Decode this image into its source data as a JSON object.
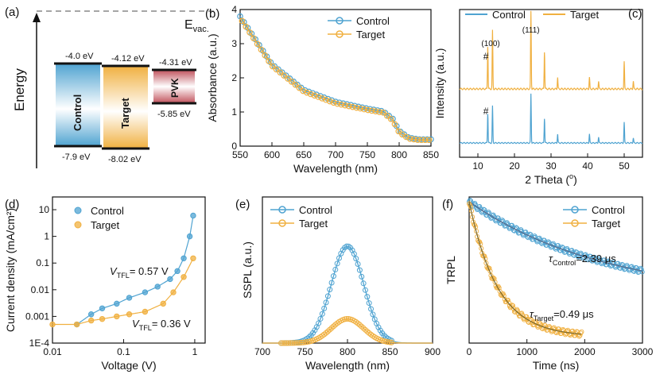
{
  "colors": {
    "control": "#4fa3d1",
    "target": "#f0b040",
    "pvk": "#c0505a"
  },
  "panel_a": {
    "tag": "(a)",
    "axis_label": "Energy",
    "vacuum_label": "E",
    "vacuum_sub": "vac.",
    "bars": [
      {
        "name": "Control",
        "top_label": "-4.0 eV",
        "bottom_label": "-7.9 eV",
        "top": -4.0,
        "bottom": -7.9
      },
      {
        "name": "Target",
        "top_label": "-4.12 eV",
        "bottom_label": "-8.02 eV",
        "top": -4.12,
        "bottom": -8.02
      },
      {
        "name": "PVK",
        "top_label": "-4.31 eV",
        "bottom_label": "-5.85 eV",
        "top": -4.31,
        "bottom": -5.85
      }
    ]
  },
  "chart_data": [
    {
      "panel": "b",
      "tag": "(b)",
      "type": "scatter",
      "xlabel": "Wavelength (nm)",
      "ylabel": "Absorbance (a.u.)",
      "xlim": [
        550,
        850
      ],
      "ylim": [
        0,
        4
      ],
      "xticks": [
        "550",
        "600",
        "650",
        "700",
        "750",
        "800",
        "850"
      ],
      "yticks": [
        "0",
        "1",
        "2",
        "3",
        "4"
      ],
      "legend": "top-right",
      "series": [
        {
          "name": "Control",
          "x": [
            550,
            600,
            650,
            700,
            750,
            775,
            790,
            800,
            815,
            830,
            850
          ],
          "y": [
            3.8,
            2.4,
            1.65,
            1.3,
            1.1,
            1.02,
            0.8,
            0.45,
            0.25,
            0.2,
            0.2
          ]
        },
        {
          "name": "Target",
          "x": [
            550,
            600,
            650,
            700,
            750,
            775,
            790,
            800,
            815,
            830,
            850
          ],
          "y": [
            3.75,
            2.35,
            1.6,
            1.25,
            1.06,
            0.98,
            0.75,
            0.4,
            0.22,
            0.18,
            0.18
          ]
        }
      ]
    },
    {
      "panel": "c",
      "tag": "(c)",
      "type": "line",
      "xlabel": "2 Theta (o)",
      "ylabel": "Intensity (a.u.)",
      "xlim": [
        5,
        55
      ],
      "xticks": [
        "10",
        "20",
        "30",
        "40",
        "50"
      ],
      "legend": "top",
      "annotations": [
        "(100)",
        "(111)",
        "#",
        "#"
      ],
      "series": [
        {
          "name": "Control",
          "peaks_x": [
            12.7,
            14.0,
            24.5,
            28.2,
            31.8,
            40.5,
            43.0,
            50.0,
            52.5
          ],
          "peaks_h": [
            0.6,
            0.75,
            1.0,
            0.5,
            0.18,
            0.18,
            0.12,
            0.42,
            0.1
          ]
        },
        {
          "name": "Target",
          "peaks_x": [
            12.7,
            14.0,
            24.5,
            28.2,
            31.8,
            40.5,
            43.0,
            50.0,
            52.5
          ],
          "peaks_h": [
            0.55,
            0.75,
            1.0,
            0.48,
            0.15,
            0.15,
            0.1,
            0.35,
            0.1
          ]
        }
      ]
    },
    {
      "panel": "d",
      "tag": "(d)",
      "type": "scatter",
      "xlabel": "Voltage (V)",
      "ylabel": "Current density (mA/cm²)",
      "xscale": "log",
      "yscale": "log",
      "xlim": [
        0.01,
        1.4
      ],
      "ylim": [
        0.0001,
        30
      ],
      "xticks": [
        "0.01",
        "0.1",
        "1"
      ],
      "yticks": [
        "1E-4",
        "0.001",
        "0.01",
        "0.1",
        "1",
        "10"
      ],
      "legend": "top-left",
      "annotations": [
        {
          "text": "V",
          "sub": "TFL",
          "value": "= 0.57 V"
        },
        {
          "text": "V",
          "sub": "TFL",
          "value": "= 0.36 V"
        }
      ],
      "series": [
        {
          "name": "Control",
          "x": [
            0.022,
            0.035,
            0.05,
            0.08,
            0.12,
            0.2,
            0.3,
            0.45,
            0.57,
            0.7,
            0.85,
            0.95
          ],
          "y": [
            0.0005,
            0.0012,
            0.002,
            0.003,
            0.005,
            0.008,
            0.013,
            0.025,
            0.05,
            0.15,
            1,
            6
          ]
        },
        {
          "name": "Target",
          "x": [
            0.01,
            0.022,
            0.035,
            0.05,
            0.08,
            0.12,
            0.2,
            0.36,
            0.5,
            0.7,
            0.95
          ],
          "y": [
            0.0005,
            0.0005,
            0.0007,
            0.0008,
            0.001,
            0.0012,
            0.0015,
            0.003,
            0.008,
            0.03,
            0.15
          ]
        }
      ]
    },
    {
      "panel": "e",
      "tag": "(e)",
      "type": "line",
      "xlabel": "Wavelength (nm)",
      "ylabel": "SSPL (a.u.)",
      "xlim": [
        700,
        900
      ],
      "xticks": [
        "700",
        "750",
        "800",
        "850",
        "900"
      ],
      "legend": "top-left",
      "series": [
        {
          "name": "Control",
          "peak": 800,
          "fwhm": 45,
          "height": 1.0
        },
        {
          "name": "Target",
          "peak": 800,
          "fwhm": 45,
          "height": 0.25
        }
      ]
    },
    {
      "panel": "f",
      "tag": "(f)",
      "type": "scatter",
      "xlabel": "Time (ns)",
      "ylabel": "TRPL",
      "xlim": [
        0,
        3000
      ],
      "xticks": [
        "0",
        "1000",
        "2000",
        "3000"
      ],
      "legend": "top-right",
      "annotations": [
        {
          "text": "τ",
          "sub": "Control",
          "value": "=2.39 μs"
        },
        {
          "text": "τ",
          "sub": "Target",
          "value": "=0.49 μs"
        }
      ],
      "series": [
        {
          "name": "Control",
          "tau_us": 2.39
        },
        {
          "name": "Target",
          "tau_us": 0.49
        }
      ]
    }
  ]
}
